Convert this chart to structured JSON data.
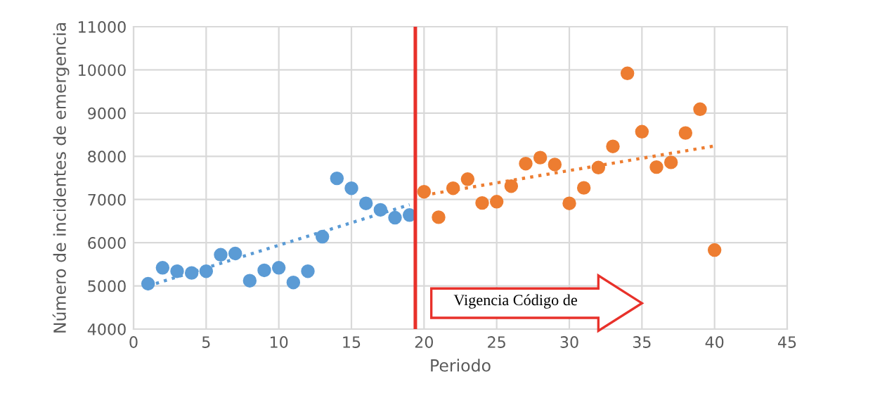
{
  "chart_data": {
    "type": "scatter",
    "xlabel": "Periodo",
    "ylabel": "Número de incidentes de emergencia",
    "xlim": [
      0,
      45
    ],
    "xticks": [
      0,
      5,
      10,
      15,
      20,
      25,
      30,
      35,
      40,
      45
    ],
    "ylim": [
      4000,
      11000
    ],
    "yticks": [
      4000,
      5000,
      6000,
      7000,
      8000,
      9000,
      10000,
      11000
    ],
    "grid": true,
    "legend": false,
    "marker": "circle",
    "series": [
      {
        "color": "#5b9bd5",
        "x": [
          1,
          2,
          3,
          4,
          5,
          6,
          7,
          8,
          9,
          10,
          11,
          12,
          13,
          14,
          15,
          16,
          17,
          18,
          19
        ],
        "values": [
          5050,
          5420,
          5340,
          5300,
          5340,
          5720,
          5750,
          5120,
          5360,
          5420,
          5080,
          5340,
          6140,
          7490,
          7260,
          6910,
          6760,
          6580,
          6640
        ]
      },
      {
        "color": "#ed7d31",
        "x": [
          20,
          21,
          22,
          23,
          24,
          25,
          26,
          27,
          28,
          29,
          30,
          31,
          32,
          33,
          34,
          35,
          36,
          37,
          38,
          39,
          40
        ],
        "values": [
          7180,
          6590,
          7260,
          7470,
          6920,
          6950,
          7310,
          7830,
          7970,
          7810,
          6910,
          7270,
          7740,
          8230,
          9920,
          8570,
          7750,
          7860,
          8540,
          9090,
          5830
        ]
      },
      {
        "type": "line",
        "color": "#5b9bd5",
        "line_style": "dotted",
        "marker": "none",
        "x": [
          1,
          19
        ],
        "values": [
          5000,
          6880
        ]
      },
      {
        "type": "line",
        "color": "#ed7d31",
        "line_style": "dotted",
        "marker": "none",
        "x": [
          20,
          40
        ],
        "values": [
          7100,
          8240
        ]
      }
    ],
    "ref_lines": [
      {
        "axis": "x",
        "value": 19.4,
        "color": "#e8312a"
      }
    ],
    "annotations": [
      "Vigencia Código de"
    ]
  }
}
